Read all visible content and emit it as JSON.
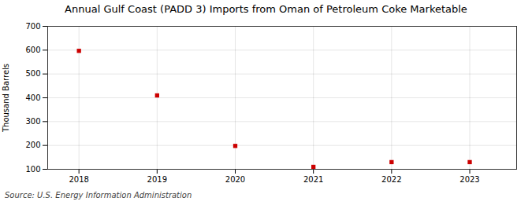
{
  "chart_data": {
    "type": "scatter",
    "title": "Annual Gulf Coast (PADD 3) Imports from Oman of Petroleum Coke Marketable",
    "ylabel": "Thousand Barrels",
    "annotations": [
      "Source: U.S. Energy Information Administration"
    ],
    "x": [
      2018,
      2019,
      2020,
      2021,
      2022,
      2023
    ],
    "values": [
      597,
      410,
      198,
      110,
      130,
      130
    ],
    "xlim": [
      2017.6,
      2023.6
    ],
    "xticks": [
      2018,
      2019,
      2020,
      2021,
      2022,
      2023
    ],
    "ylim": [
      100,
      700
    ],
    "yticks": [
      100,
      200,
      300,
      400,
      500,
      600,
      700
    ],
    "color": "#cc0000",
    "marker": "square",
    "grid": true
  }
}
